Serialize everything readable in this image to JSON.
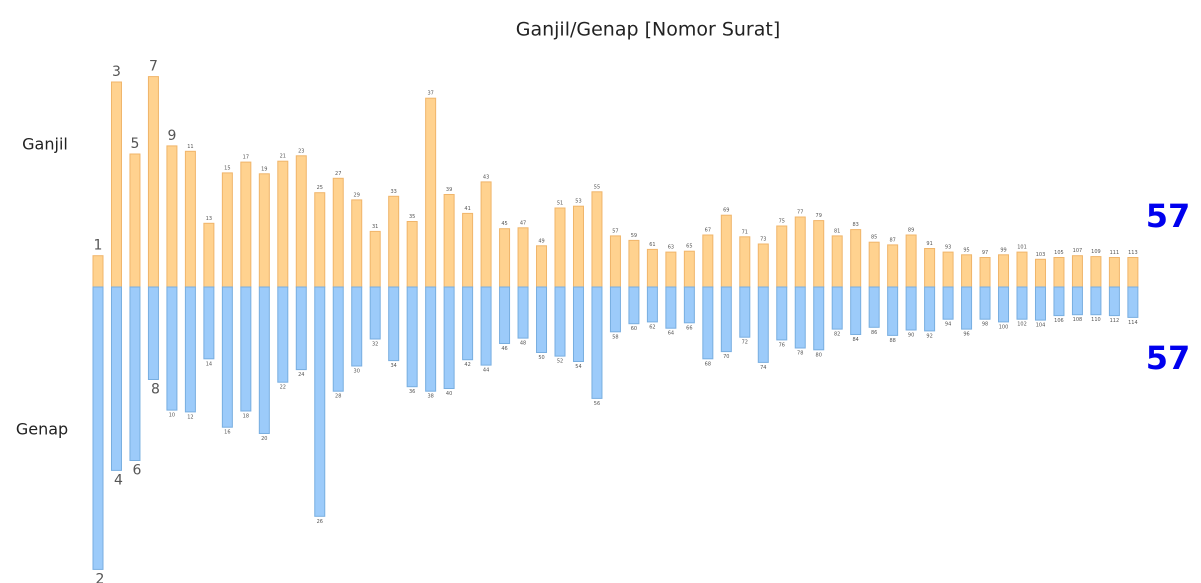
{
  "chart_data": {
    "type": "diverging-bar",
    "title": "Ganjil/Genap [Nomor Surat]",
    "series": [
      {
        "name": "Ganjil",
        "color": "#ffd28f",
        "count": 57,
        "categories": [
          1,
          3,
          5,
          7,
          9,
          11,
          13,
          15,
          17,
          19,
          21,
          23,
          25,
          27,
          29,
          31,
          33,
          35,
          37,
          39,
          41,
          43,
          45,
          47,
          49,
          51,
          53,
          55,
          57,
          59,
          61,
          63,
          65,
          67,
          69,
          71,
          73,
          75,
          77,
          79,
          81,
          83,
          85,
          87,
          89,
          91,
          93,
          95,
          97,
          99,
          101,
          103,
          105,
          107,
          109,
          111,
          113
        ],
        "values": [
          7,
          200,
          120,
          206,
          129,
          123,
          43,
          99,
          111,
          98,
          112,
          118,
          77,
          93,
          69,
          34,
          73,
          45,
          182,
          75,
          54,
          89,
          37,
          38,
          18,
          60,
          62,
          78,
          29,
          24,
          14,
          11,
          12,
          30,
          52,
          28,
          20,
          40,
          50,
          46,
          29,
          36,
          22,
          19,
          30,
          15,
          11,
          8,
          5,
          8,
          11,
          3,
          5,
          7,
          6,
          5,
          5
        ]
      },
      {
        "name": "Genap",
        "color": "#9ccbfa",
        "count": 57,
        "categories": [
          2,
          4,
          6,
          8,
          10,
          12,
          14,
          16,
          18,
          20,
          22,
          24,
          26,
          28,
          30,
          32,
          34,
          36,
          38,
          40,
          42,
          44,
          46,
          48,
          50,
          52,
          54,
          56,
          58,
          60,
          62,
          64,
          66,
          68,
          70,
          72,
          74,
          76,
          78,
          80,
          82,
          84,
          86,
          88,
          90,
          92,
          94,
          96,
          98,
          100,
          102,
          104,
          106,
          108,
          110,
          112,
          114
        ],
        "values": [
          286,
          176,
          165,
          75,
          109,
          111,
          52,
          128,
          110,
          135,
          78,
          64,
          227,
          88,
          60,
          30,
          54,
          83,
          88,
          85,
          53,
          59,
          35,
          29,
          45,
          49,
          55,
          96,
          22,
          13,
          11,
          18,
          12,
          52,
          44,
          28,
          56,
          31,
          40,
          42,
          19,
          25,
          17,
          26,
          20,
          21,
          8,
          19,
          8,
          11,
          8,
          9,
          4,
          3,
          3,
          4,
          6
        ]
      }
    ]
  }
}
